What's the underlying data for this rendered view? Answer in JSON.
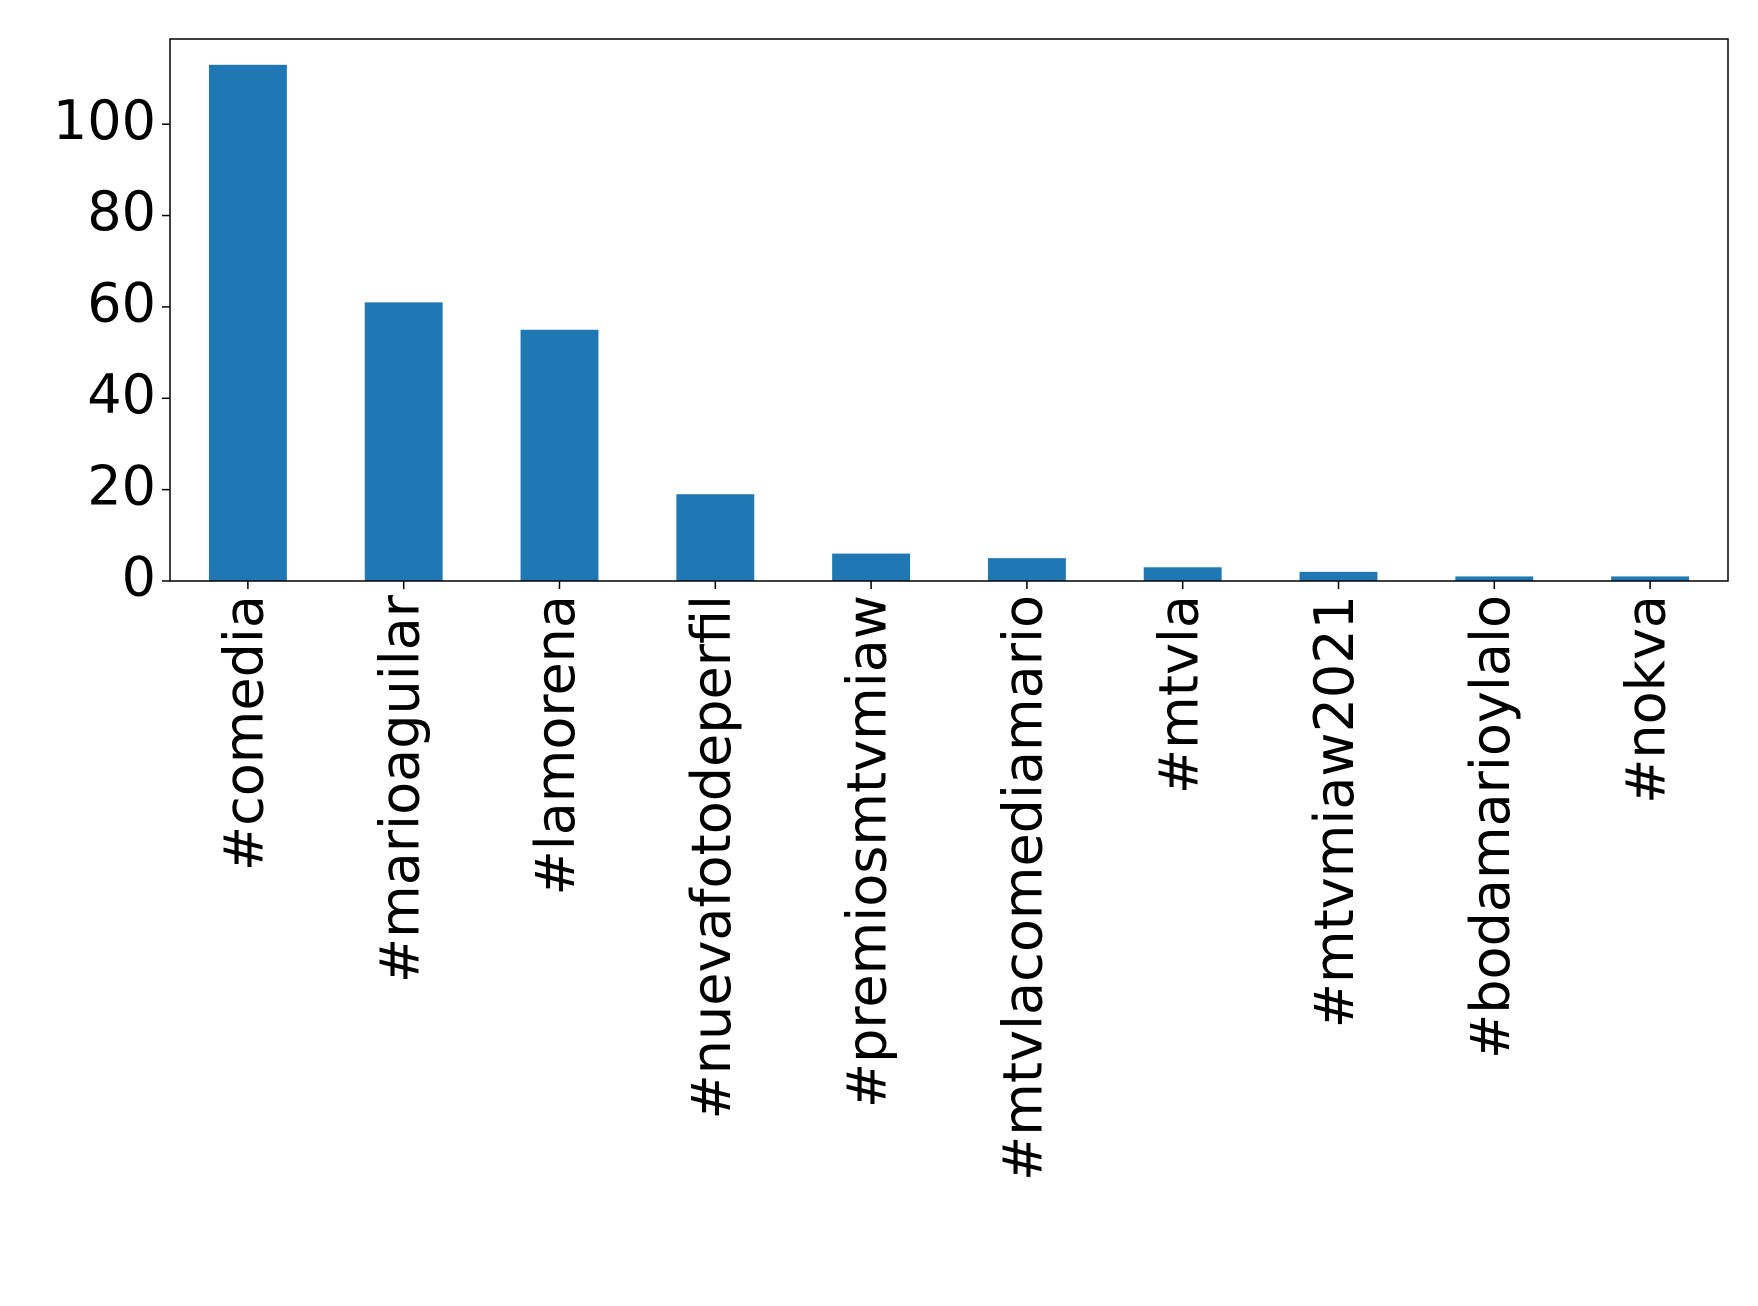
{
  "chart_data": {
    "type": "bar",
    "categories": [
      "#comedia",
      "#marioaguilar",
      "#lamorena",
      "#nuevafotodeperfil",
      "#premiosmtvmiaw",
      "#mtvlacomediamario",
      "#mtvla",
      "#mtvmiaw2021",
      "#bodamarioylalo",
      "#nokva"
    ],
    "values": [
      113,
      61,
      55,
      19,
      6,
      5,
      3,
      2,
      1,
      1
    ],
    "color": "#1f77b4",
    "ylim": [
      0,
      118.65
    ],
    "yticks": [
      0,
      20,
      40,
      60,
      80,
      100
    ],
    "grid": false
  }
}
